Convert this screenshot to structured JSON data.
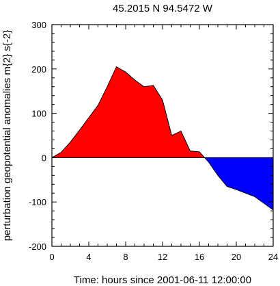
{
  "chart_data": {
    "type": "area",
    "title": "45.2015 N  94.5472 W",
    "xlabel": "Time: hours since 2001-06-11 12:00:00",
    "ylabel": "perturbation geopotential anomalies m{2} s{-2}",
    "xlim": [
      0,
      24
    ],
    "ylim": [
      -200,
      300
    ],
    "x_ticks": [
      0,
      4,
      8,
      12,
      16,
      20,
      24
    ],
    "y_ticks": [
      -200,
      -100,
      0,
      100,
      200,
      300
    ],
    "grid": false,
    "fill_above_color": "#ff0000",
    "fill_below_color": "#0000ff",
    "series": [
      {
        "x": [
          0,
          1,
          2,
          3,
          4,
          5,
          6,
          7,
          8,
          9,
          10,
          11,
          12,
          13,
          14,
          15,
          16,
          17,
          18,
          19,
          20,
          21,
          22,
          23,
          24
        ],
        "values": [
          0,
          12,
          35,
          62,
          90,
          118,
          160,
          205,
          193,
          175,
          160,
          163,
          130,
          50,
          60,
          15,
          13,
          -10,
          -40,
          -65,
          -72,
          -80,
          -88,
          -103,
          -118
        ]
      }
    ]
  }
}
